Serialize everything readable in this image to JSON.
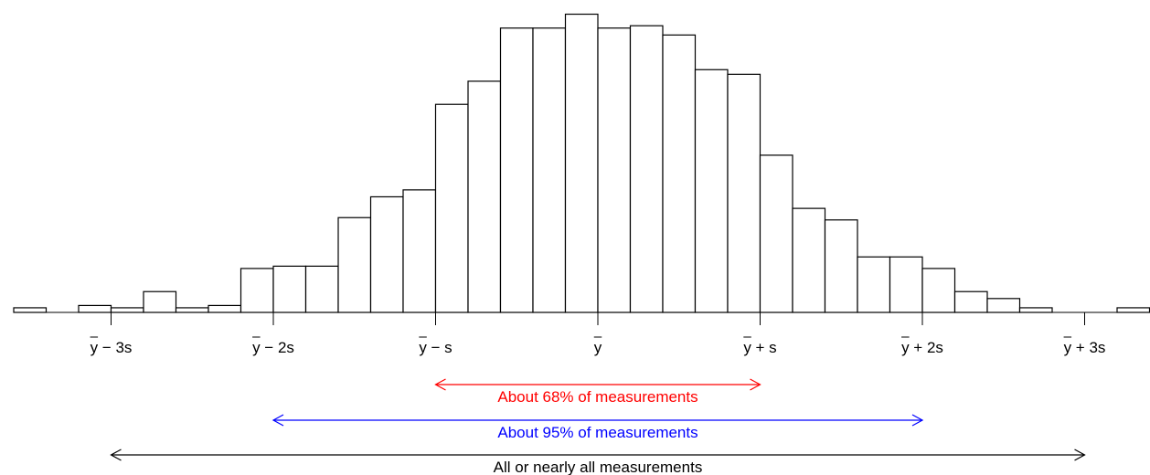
{
  "chart_data": {
    "type": "bar",
    "title": "",
    "xlabel": "",
    "ylabel": "",
    "grid": false,
    "x_unit": "standard deviations from the mean",
    "bin_width": 0.2,
    "bins_start": -3.6,
    "values": [
      2,
      0,
      3,
      2,
      9,
      2,
      3,
      19,
      20,
      20,
      41,
      50,
      53,
      90,
      100,
      123,
      123,
      129,
      123,
      124,
      120,
      105,
      103,
      68,
      45,
      40,
      24,
      24,
      19,
      9,
      6,
      2,
      0,
      0,
      2
    ],
    "ylim": [
      0,
      130
    ],
    "ticks": [
      {
        "value": -3,
        "label": "y̅ − 3s",
        "base": "y",
        "suffix": " − 3s"
      },
      {
        "value": -2,
        "label": "y̅ − 2s",
        "base": "y",
        "suffix": " − 2s"
      },
      {
        "value": -1,
        "label": "y̅ − s",
        "base": "y",
        "suffix": " − s"
      },
      {
        "value": 0,
        "label": "y̅",
        "base": "y",
        "suffix": ""
      },
      {
        "value": 1,
        "label": "y̅ + s",
        "base": "y",
        "suffix": " + s"
      },
      {
        "value": 2,
        "label": "y̅ + 2s",
        "base": "y",
        "suffix": " + 2s"
      },
      {
        "value": 3,
        "label": "y̅ + 3s",
        "base": "y",
        "suffix": " + 3s"
      }
    ],
    "annotations": [
      {
        "from": -1,
        "to": 1,
        "label": "About 68% of measurements",
        "color": "#ff0000"
      },
      {
        "from": -2,
        "to": 2,
        "label": "About 95% of measurements",
        "color": "#0000ff"
      },
      {
        "from": -3,
        "to": 3,
        "label": "All or nearly all measurements",
        "color": "#000000"
      }
    ]
  }
}
